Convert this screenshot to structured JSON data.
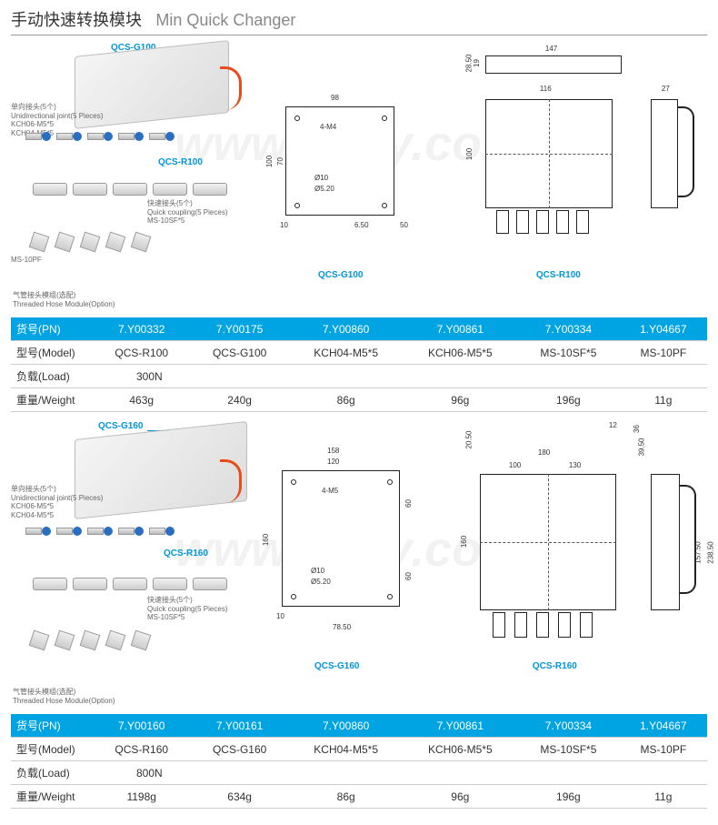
{
  "title": {
    "cn": "手动快速转换模块",
    "en": "Min Quick Changer"
  },
  "watermark": "www.ehsy.com",
  "colors": {
    "header_bg": "#00a4e3",
    "header_text": "#ffffff",
    "accent": "#0095d9",
    "lever": "#e84c1a",
    "joint_blue": "#2a6fbf",
    "border": "#cccccc",
    "text": "#333333"
  },
  "annotations": {
    "joint": {
      "zh": "单向接头(5个)",
      "en": "Unidirectional joint(5 Pieces)",
      "pn1": "KCH06-M5*5",
      "pn2": "KCH04-M5*5"
    },
    "coupling": {
      "zh": "快速接头(5个)",
      "en": "Quick coupling(5 Pieces)",
      "pn": "MS-10SF*5"
    },
    "nut": "MS-10PF",
    "hose_module": {
      "zh": "气管接头模组(选配)",
      "en": "Threaded Hose Module(Option)"
    }
  },
  "section1": {
    "callouts": {
      "top": "QCS-G100",
      "mid": "QCS-R100"
    },
    "drawing_labels": {
      "left": "QCS-G100",
      "right": "QCS-R100"
    },
    "dims_left": {
      "w": "98",
      "h": "100",
      "inner_h": "70",
      "note1": "4-M4",
      "note2": "Ø10",
      "note3": "Ø5.20",
      "bottom1": "10",
      "bottom2": "6.50",
      "side": "50"
    },
    "dims_right_top": {
      "w": "147",
      "h1": "28.50",
      "h2": "19"
    },
    "dims_right_mid": {
      "w": "116",
      "h": "100"
    },
    "dims_right_side": {
      "w": "27"
    },
    "table": {
      "headers": [
        "货号(PN)",
        "7.Y00332",
        "7.Y00175",
        "7.Y00860",
        "7.Y00861",
        "7.Y00334",
        "1.Y04667"
      ],
      "rows": [
        [
          "型号(Model)",
          "QCS-R100",
          "QCS-G100",
          "KCH04-M5*5",
          "KCH06-M5*5",
          "MS-10SF*5",
          "MS-10PF"
        ],
        [
          "负载(Load)",
          "300N",
          "",
          "",
          "",
          "",
          ""
        ],
        [
          "重量/Weight",
          "463g",
          "240g",
          "86g",
          "96g",
          "196g",
          "11g"
        ]
      ],
      "load_colspan_value": "300N"
    }
  },
  "section2": {
    "callouts": {
      "top": "QCS-G160",
      "mid": "QCS-R160"
    },
    "drawing_labels": {
      "left": "QCS-G160",
      "right": "QCS-R160"
    },
    "dims_left": {
      "w": "158",
      "inner_w": "120",
      "h": "160",
      "side_h": "60",
      "note1": "4-M5",
      "note2": "Ø10",
      "note3": "Ø5.20",
      "bottom1": "10",
      "bottom2": "78.50"
    },
    "dims_right_top": {
      "w": "180",
      "inner1": "100",
      "inner2": "130",
      "h1": "12",
      "h2": "20.50",
      "h3": "36",
      "h4": "39.50"
    },
    "dims_right_mid": {
      "h": "160"
    },
    "dims_right_side": {
      "h1": "238.50",
      "h2": "157.50"
    },
    "table": {
      "headers": [
        "货号(PN)",
        "7.Y00160",
        "7.Y00161",
        "7.Y00860",
        "7.Y00861",
        "7.Y00334",
        "1.Y04667"
      ],
      "rows": [
        [
          "型号(Model)",
          "QCS-R160",
          "QCS-G160",
          "KCH04-M5*5",
          "KCH06-M5*5",
          "MS-10SF*5",
          "MS-10PF"
        ],
        [
          "负载(Load)",
          "800N",
          "",
          "",
          "",
          "",
          ""
        ],
        [
          "重量/Weight",
          "1198g",
          "634g",
          "86g",
          "96g",
          "196g",
          "11g"
        ]
      ],
      "load_colspan_value": "800N"
    }
  }
}
